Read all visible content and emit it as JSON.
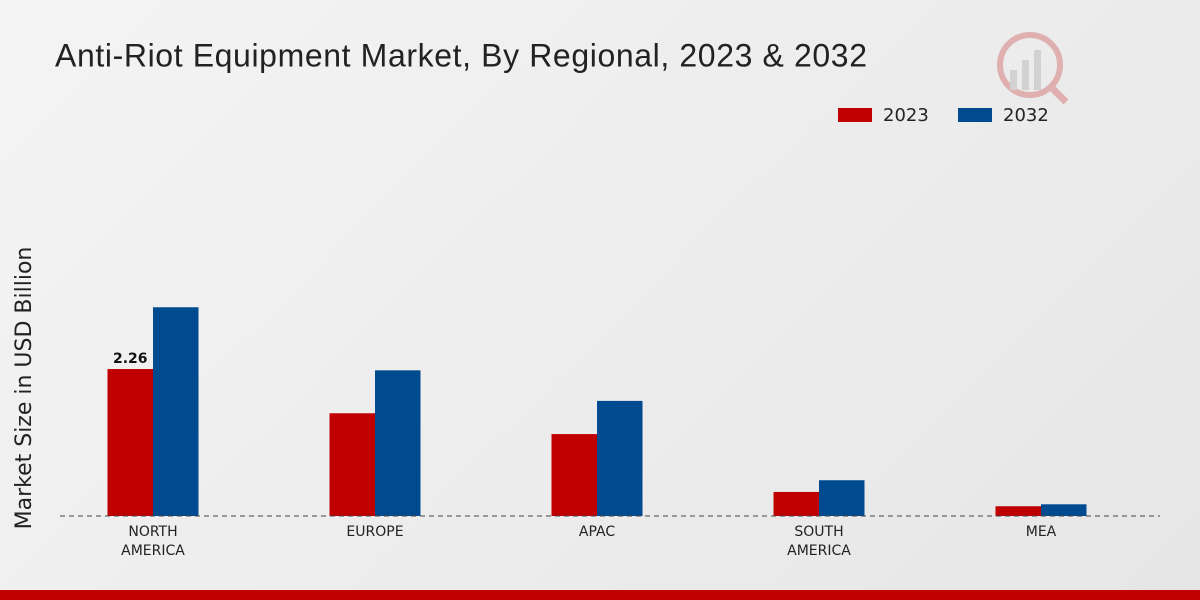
{
  "chart_data": {
    "type": "bar",
    "title": "Anti-Riot Equipment Market, By Regional, 2023 & 2032",
    "y_label": "Market Size in USD Billion",
    "categories": [
      "NORTH AMERICA",
      "EUROPE",
      "APAC",
      "SOUTH AMERICA",
      "MEA"
    ],
    "series": [
      {
        "name": "2023",
        "color": "#c00000",
        "values": [
          2.26,
          1.58,
          1.26,
          0.37,
          0.15
        ],
        "value_labels": [
          "2.26",
          null,
          null,
          null,
          null
        ]
      },
      {
        "name": "2032",
        "color": "#004a8f",
        "values": [
          3.21,
          2.24,
          1.77,
          0.55,
          0.18
        ]
      }
    ],
    "ylim": [
      0,
      3.5
    ],
    "legend": "top-right"
  }
}
